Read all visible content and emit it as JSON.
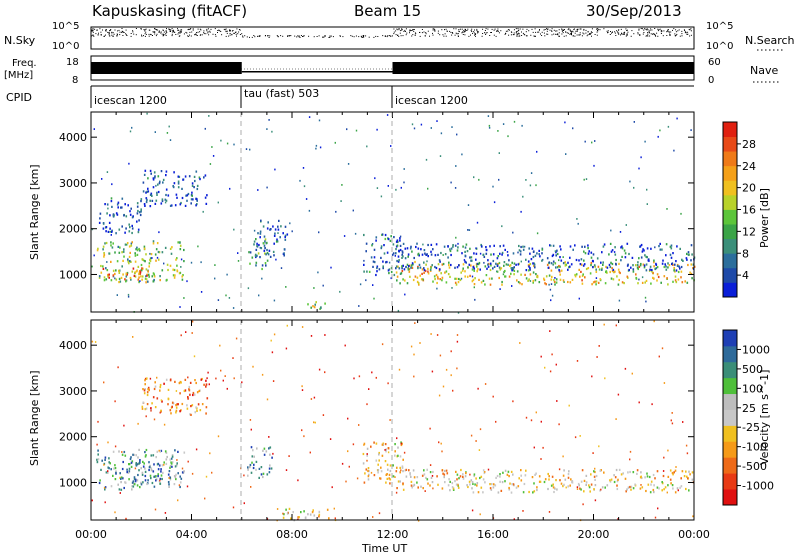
{
  "header": {
    "station": "Kapuskasing (fitACF)",
    "beam": "Beam 15",
    "date": "30/Sep/2013"
  },
  "strips": {
    "nsky_label": "N.Sky",
    "nsearch_label": "N.Search",
    "freq_label": "Freq.",
    "freq_unit": "[MHz]",
    "nave_label": "Nave",
    "cpid_label": "CPID",
    "left_ticks_top": [
      "10^5",
      "10^0"
    ],
    "right_ticks_top": [
      "10^5",
      "10^0"
    ],
    "freq_ticks": [
      "18",
      "8"
    ],
    "nave_ticks": [
      "60",
      "0"
    ],
    "cpid_segments": [
      {
        "label": "icescan 1200",
        "start": 0,
        "end": 6
      },
      {
        "label": "tau (fast) 503",
        "start": 6,
        "end": 12
      },
      {
        "label": "icescan 1200",
        "start": 12,
        "end": 24
      }
    ]
  },
  "chart_data": [
    {
      "type": "heatmap",
      "name": "power",
      "ylabel": "Slant Range [km]",
      "xlim": [
        0,
        24
      ],
      "ylim": [
        180,
        4550
      ],
      "yticks": [
        1000,
        2000,
        3000,
        4000
      ],
      "colorbar": {
        "label": "Power [dB]",
        "ticks": [
          "4",
          "8",
          "12",
          "16",
          "20",
          "24",
          "28"
        ],
        "colors": [
          "#0a1fd8",
          "#1e4aa8",
          "#2b6e9c",
          "#3b8f7a",
          "#3aa447",
          "#5cc53a",
          "#b8d22a",
          "#f0c020",
          "#f5a018",
          "#ef7a18",
          "#e84a18",
          "#e02010"
        ]
      },
      "regions": [
        {
          "t0": 0.2,
          "t1": 3.7,
          "r0": 850,
          "r1": 1750,
          "level": 0.45
        },
        {
          "t0": 0.3,
          "t1": 2.5,
          "r0": 900,
          "r1": 1200,
          "level": 0.75
        },
        {
          "t0": 0.3,
          "t1": 2.0,
          "r0": 1900,
          "r1": 2700,
          "level": 0.12
        },
        {
          "t0": 2.0,
          "t1": 4.6,
          "r0": 2500,
          "r1": 3300,
          "level": 0.1
        },
        {
          "t0": 6.2,
          "t1": 7.0,
          "r0": 1100,
          "r1": 1800,
          "level": 0.35
        },
        {
          "t0": 6.5,
          "t1": 7.8,
          "r0": 1400,
          "r1": 2200,
          "level": 0.12
        },
        {
          "t0": 10.8,
          "t1": 12.4,
          "r0": 1000,
          "r1": 1900,
          "level": 0.2
        },
        {
          "t0": 12.1,
          "t1": 24.0,
          "r0": 800,
          "r1": 1300,
          "level": 0.6
        },
        {
          "t0": 12.1,
          "t1": 24.0,
          "r0": 1100,
          "r1": 1700,
          "level": 0.15
        },
        {
          "t0": 8.3,
          "t1": 9.3,
          "r0": 250,
          "r1": 450,
          "level": 0.5
        }
      ]
    },
    {
      "type": "heatmap",
      "name": "velocity",
      "ylabel": "Slant Range [km]",
      "xlabel": "Time UT",
      "xlim": [
        0,
        24
      ],
      "ylim": [
        180,
        4550
      ],
      "yticks": [
        1000,
        2000,
        3000,
        4000
      ],
      "xticks": [
        "00:00",
        "04:00",
        "08:00",
        "12:00",
        "16:00",
        "20:00",
        "00:00"
      ],
      "colorbar": {
        "label": "Velocity [m s^-1]",
        "ticks": [
          "1000",
          "500",
          "100",
          "25",
          "-25",
          "-100",
          "-500",
          "-1000"
        ],
        "colors": [
          "#1e3fb4",
          "#2e6a9a",
          "#3b8e78",
          "#4fbf3a",
          "#bdbdbd",
          "#c8c8c8",
          "#f0c020",
          "#f59a18",
          "#ee6a18",
          "#e83a14",
          "#e01010"
        ]
      },
      "regions": [
        {
          "t0": 0.2,
          "t1": 3.7,
          "r0": 850,
          "r1": 1750,
          "level": 0.7
        },
        {
          "t0": 1.5,
          "t1": 2.8,
          "r0": 900,
          "r1": 1500,
          "level": 0.85
        },
        {
          "t0": 6.2,
          "t1": 7.2,
          "r0": 1100,
          "r1": 1800,
          "level": 0.75
        },
        {
          "t0": 2.0,
          "t1": 4.6,
          "r0": 2500,
          "r1": 3300,
          "level": 0.3
        },
        {
          "t0": 10.8,
          "t1": 12.4,
          "r0": 1000,
          "r1": 1900,
          "level": 0.45
        },
        {
          "t0": 12.1,
          "t1": 24.0,
          "r0": 800,
          "r1": 1300,
          "level": 0.45
        },
        {
          "t0": 7.5,
          "t1": 9.5,
          "r0": 200,
          "r1": 450,
          "level": 0.45
        }
      ]
    }
  ]
}
